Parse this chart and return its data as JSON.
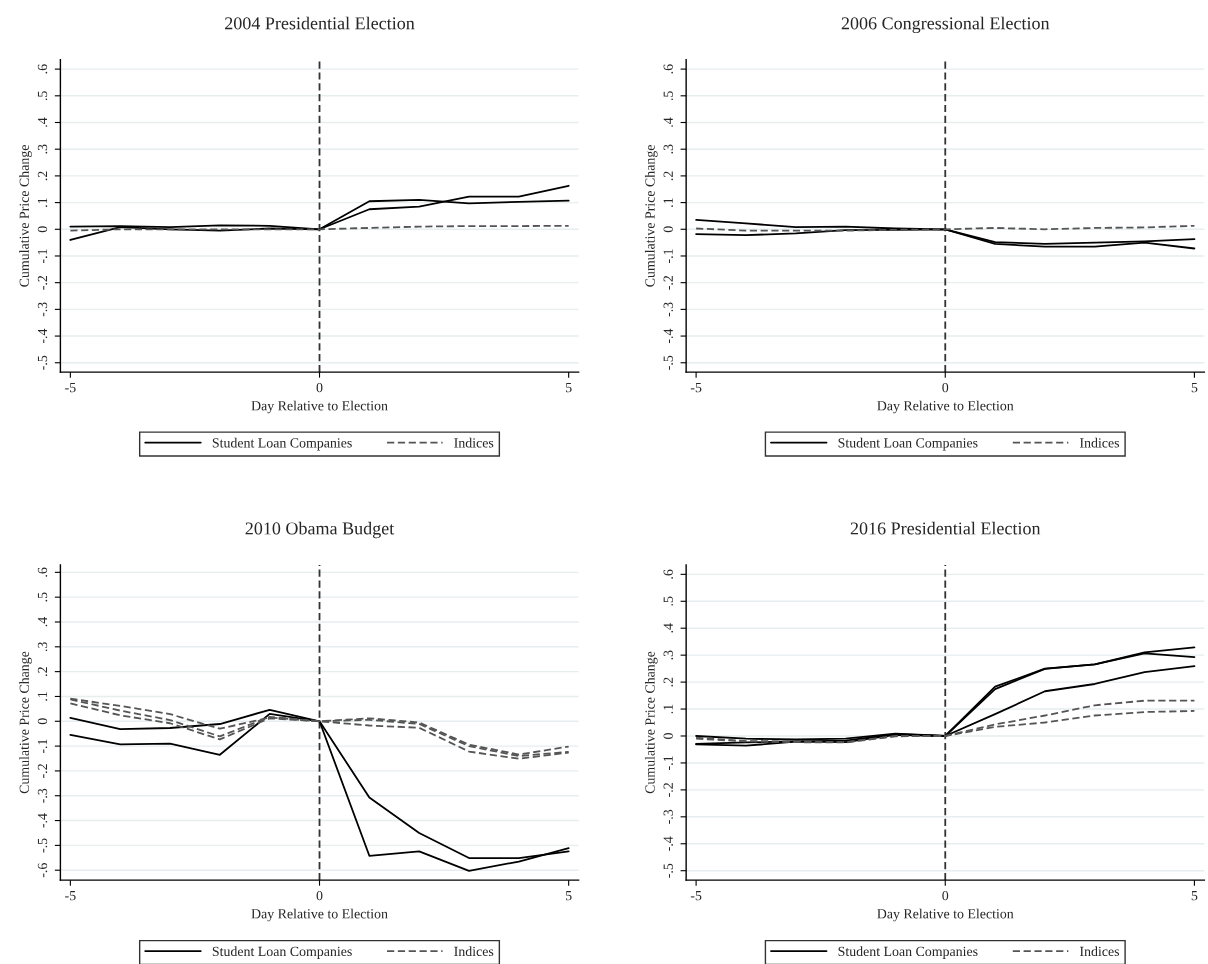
{
  "chart_data": [
    {
      "type": "line",
      "title": "2004 Presidential Election",
      "xlabel": "Day Relative to Election",
      "ylabel": "Cumulative Price Change",
      "x": [
        -5,
        -4,
        -3,
        -2,
        -1,
        0,
        1,
        2,
        3,
        4,
        5
      ],
      "xlim": [
        -5.2,
        5.2
      ],
      "xticks": [
        -5,
        0,
        5
      ],
      "ylim": [
        -0.535,
        0.635
      ],
      "yticks": [
        {
          "value": -0.5,
          "label": "-.5"
        },
        {
          "value": -0.4,
          "label": "-.4"
        },
        {
          "value": -0.3,
          "label": "-.3"
        },
        {
          "value": -0.2,
          "label": "-.2"
        },
        {
          "value": -0.1,
          "label": "-.1"
        },
        0,
        {
          "value": 0.1,
          "label": ".1"
        },
        {
          "value": 0.2,
          "label": ".2"
        },
        {
          "value": 0.3,
          "label": ".3"
        },
        {
          "value": 0.4,
          "label": ".4"
        },
        {
          "value": 0.5,
          "label": ".5"
        },
        {
          "value": 0.6,
          "label": ".6"
        }
      ],
      "grid": "y",
      "legend": "bottom",
      "ref_lines": [
        {
          "axis": "x",
          "value": 0,
          "color": "#333333",
          "line_style": "dashed"
        }
      ],
      "series": [
        {
          "name": "Student Loan Companies",
          "color": "#000000",
          "line_style": "solid",
          "values": [
            0.01,
            0.012,
            0.008,
            0.015,
            0.013,
            0,
            0.105,
            0.11,
            0.097,
            0.103,
            0.107
          ]
        },
        {
          "color": "#000000",
          "line_style": "solid",
          "values": [
            -0.04,
            0.008,
            0.0,
            -0.005,
            0.003,
            0,
            0.075,
            0.085,
            0.122,
            0.122,
            0.163
          ]
        },
        {
          "name": "Indices",
          "color": "#555555",
          "line_style": "dashed",
          "values": [
            -0.005,
            0.0,
            0.0,
            0.0,
            0.0,
            0,
            0.005,
            0.01,
            0.012,
            0.012,
            0.013
          ]
        }
      ]
    },
    {
      "type": "line",
      "title": "2006 Congressional Election",
      "xlabel": "Day Relative to Election",
      "ylabel": "Cumulative Price Change",
      "x": [
        -5,
        -4,
        -3,
        -2,
        -1,
        0,
        1,
        2,
        3,
        4,
        5
      ],
      "xlim": [
        -5.2,
        5.2
      ],
      "xticks": [
        -5,
        0,
        5
      ],
      "ylim": [
        -0.535,
        0.635
      ],
      "yticks": [
        {
          "value": -0.5,
          "label": "-.5"
        },
        {
          "value": -0.4,
          "label": "-.4"
        },
        {
          "value": -0.3,
          "label": "-.3"
        },
        {
          "value": -0.2,
          "label": "-.2"
        },
        {
          "value": -0.1,
          "label": "-.1"
        },
        0,
        {
          "value": 0.1,
          "label": ".1"
        },
        {
          "value": 0.2,
          "label": ".2"
        },
        {
          "value": 0.3,
          "label": ".3"
        },
        {
          "value": 0.4,
          "label": ".4"
        },
        {
          "value": 0.5,
          "label": ".5"
        },
        {
          "value": 0.6,
          "label": ".6"
        }
      ],
      "grid": "y",
      "legend": "bottom",
      "ref_lines": [
        {
          "axis": "x",
          "value": 0,
          "color": "#333333",
          "line_style": "dashed"
        }
      ],
      "series": [
        {
          "name": "Student Loan Companies",
          "color": "#000000",
          "line_style": "solid",
          "values": [
            0.035,
            0.022,
            0.008,
            0.01,
            0.003,
            0,
            -0.048,
            -0.055,
            -0.05,
            -0.045,
            -0.037
          ]
        },
        {
          "color": "#000000",
          "line_style": "solid",
          "values": [
            -0.018,
            -0.022,
            -0.015,
            -0.003,
            -0.002,
            0,
            -0.055,
            -0.065,
            -0.065,
            -0.05,
            -0.072
          ]
        },
        {
          "name": "Indices",
          "color": "#555555",
          "line_style": "dashed",
          "values": [
            0.003,
            -0.005,
            -0.005,
            -0.005,
            -0.002,
            0,
            0.005,
            0.0,
            0.005,
            0.007,
            0.013
          ]
        }
      ]
    },
    {
      "type": "line",
      "title": "2010 Obama Budget",
      "xlabel": "Day Relative to Election",
      "ylabel": "Cumulative Price Change",
      "x": [
        -5,
        -4,
        -3,
        -2,
        -1,
        0,
        1,
        2,
        3,
        4,
        5
      ],
      "xlim": [
        -5.2,
        5.2
      ],
      "xticks": [
        -5,
        0,
        5
      ],
      "ylim": [
        -0.64,
        0.63
      ],
      "yticks": [
        {
          "value": -0.6,
          "label": "-.6"
        },
        {
          "value": -0.5,
          "label": "-.5"
        },
        {
          "value": -0.4,
          "label": "-.4"
        },
        {
          "value": -0.3,
          "label": "-.3"
        },
        {
          "value": -0.2,
          "label": "-.2"
        },
        {
          "value": -0.1,
          "label": "-.1"
        },
        0,
        {
          "value": 0.1,
          "label": ".1"
        },
        {
          "value": 0.2,
          "label": ".2"
        },
        {
          "value": 0.3,
          "label": ".3"
        },
        {
          "value": 0.4,
          "label": ".4"
        },
        {
          "value": 0.5,
          "label": ".5"
        },
        {
          "value": 0.6,
          "label": ".6"
        }
      ],
      "grid": "y",
      "legend": "bottom",
      "ref_lines": [
        {
          "axis": "x",
          "value": 0,
          "color": "#333333",
          "line_style": "dashed"
        }
      ],
      "series": [
        {
          "name": "Student Loan Companies",
          "color": "#000000",
          "line_style": "solid",
          "values": [
            0.014,
            -0.032,
            -0.027,
            -0.011,
            0.046,
            0,
            -0.307,
            -0.45,
            -0.551,
            -0.551,
            -0.524
          ]
        },
        {
          "color": "#000000",
          "line_style": "solid",
          "values": [
            -0.055,
            -0.093,
            -0.09,
            -0.135,
            0.03,
            0,
            -0.542,
            -0.524,
            -0.603,
            -0.565,
            -0.511
          ]
        },
        {
          "name": "Indices",
          "color": "#555555",
          "line_style": "dashed",
          "values": [
            0.091,
            0.062,
            0.029,
            -0.03,
            0.015,
            0,
            0.012,
            -0.005,
            -0.094,
            -0.134,
            -0.102
          ]
        },
        {
          "color": "#555555",
          "line_style": "dashed",
          "values": [
            0.088,
            0.043,
            0.005,
            -0.061,
            0.018,
            0,
            0.006,
            -0.011,
            -0.1,
            -0.14,
            -0.123
          ]
        },
        {
          "color": "#555555",
          "line_style": "dashed",
          "values": [
            0.072,
            0.024,
            -0.008,
            -0.073,
            0.012,
            0,
            -0.017,
            -0.026,
            -0.122,
            -0.151,
            -0.126
          ]
        }
      ]
    },
    {
      "type": "line",
      "title": "2016 Presidential Election",
      "xlabel": "Day Relative to Election",
      "ylabel": "Cumulative Price Change",
      "x": [
        -5,
        -4,
        -3,
        -2,
        -1,
        0,
        1,
        2,
        3,
        4,
        5
      ],
      "xlim": [
        -5.2,
        5.2
      ],
      "xticks": [
        -5,
        0,
        5
      ],
      "ylim": [
        -0.535,
        0.635
      ],
      "yticks": [
        {
          "value": -0.5,
          "label": "-.5"
        },
        {
          "value": -0.4,
          "label": "-.4"
        },
        {
          "value": -0.3,
          "label": "-.3"
        },
        {
          "value": -0.2,
          "label": "-.2"
        },
        {
          "value": -0.1,
          "label": "-.1"
        },
        0,
        {
          "value": 0.1,
          "label": ".1"
        },
        {
          "value": 0.2,
          "label": ".2"
        },
        {
          "value": 0.3,
          "label": ".3"
        },
        {
          "value": 0.4,
          "label": ".4"
        },
        {
          "value": 0.5,
          "label": ".5"
        },
        {
          "value": 0.6,
          "label": ".6"
        }
      ],
      "grid": "y",
      "legend": "bottom",
      "ref_lines": [
        {
          "axis": "x",
          "value": 0,
          "color": "#333333",
          "line_style": "dashed"
        }
      ],
      "series": [
        {
          "name": "Student Loan Companies",
          "color": "#000000",
          "line_style": "solid",
          "values": [
            -0.029,
            -0.024,
            -0.02,
            -0.017,
            0.007,
            0,
            0.183,
            0.25,
            0.266,
            0.31,
            0.329
          ]
        },
        {
          "color": "#000000",
          "line_style": "solid",
          "values": [
            0.0,
            -0.01,
            -0.013,
            -0.01,
            0.009,
            0,
            0.174,
            0.249,
            0.266,
            0.307,
            0.293
          ]
        },
        {
          "color": "#000000",
          "line_style": "solid",
          "values": [
            -0.031,
            -0.036,
            -0.021,
            -0.023,
            0.004,
            0,
            0.081,
            0.166,
            0.193,
            0.237,
            0.259
          ]
        },
        {
          "name": "Indices",
          "color": "#555555",
          "line_style": "dashed",
          "values": [
            -0.006,
            -0.019,
            -0.02,
            -0.023,
            0.0,
            0,
            0.043,
            0.076,
            0.114,
            0.131,
            0.131
          ]
        },
        {
          "color": "#555555",
          "line_style": "dashed",
          "values": [
            -0.01,
            -0.02,
            -0.023,
            -0.024,
            -0.001,
            0,
            0.034,
            0.05,
            0.076,
            0.089,
            0.093
          ]
        }
      ]
    }
  ]
}
